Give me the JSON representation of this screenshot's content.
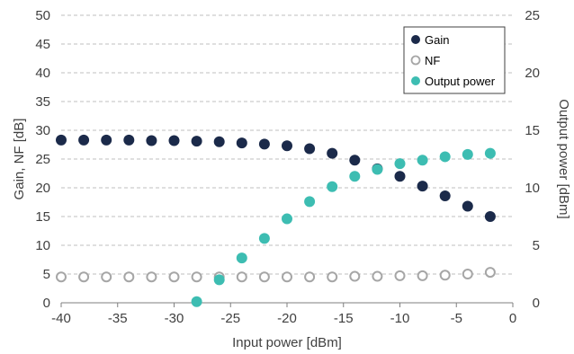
{
  "chart_data": {
    "type": "scatter",
    "xlabel": "Input power [dBm]",
    "ylabel": "Gain, NF [dB]",
    "y2label": "Output power [dBm]",
    "xlim": [
      -40,
      0
    ],
    "ylim": [
      0,
      50
    ],
    "y2lim": [
      0,
      25
    ],
    "x_ticks": [
      "-40",
      "-35",
      "-30",
      "-25",
      "-20",
      "-15",
      "-10",
      "-5",
      "0"
    ],
    "y_ticks": [
      "0",
      "5",
      "10",
      "15",
      "20",
      "25",
      "30",
      "35",
      "40",
      "45",
      "50"
    ],
    "y2_ticks": [
      "0",
      "5",
      "10",
      "15",
      "20",
      "25"
    ],
    "grid": "horizontal dashed",
    "legend_position": "top-right",
    "series": [
      {
        "name": "Gain",
        "axis": "left",
        "color": "#1b2a4a",
        "fill": "solid",
        "x": [
          -40,
          -38,
          -36,
          -34,
          -32,
          -30,
          -28,
          -26,
          -24,
          -22,
          -20,
          -18,
          -16,
          -14,
          -12,
          -10,
          -8,
          -6,
          -4,
          -2
        ],
        "values": [
          28.3,
          28.3,
          28.3,
          28.3,
          28.2,
          28.2,
          28.1,
          28.0,
          27.8,
          27.6,
          27.3,
          26.8,
          26.0,
          24.8,
          23.3,
          22.0,
          20.3,
          18.6,
          16.8,
          15.0
        ]
      },
      {
        "name": "NF",
        "axis": "left",
        "color": "#a6a6a6",
        "fill": "hollow",
        "x": [
          -40,
          -38,
          -36,
          -34,
          -32,
          -30,
          -28,
          -26,
          -24,
          -22,
          -20,
          -18,
          -16,
          -14,
          -12,
          -10,
          -8,
          -6,
          -4,
          -2
        ],
        "values": [
          4.5,
          4.5,
          4.5,
          4.5,
          4.5,
          4.5,
          4.5,
          4.5,
          4.5,
          4.5,
          4.5,
          4.5,
          4.5,
          4.6,
          4.6,
          4.7,
          4.7,
          4.8,
          5.0,
          5.3
        ]
      },
      {
        "name": "Output power",
        "axis": "right",
        "color": "#3dbdb2",
        "fill": "solid",
        "x": [
          -28,
          -26,
          -24,
          -22,
          -20,
          -18,
          -16,
          -14,
          -12,
          -10,
          -8,
          -6,
          -4,
          -2
        ],
        "values": [
          0.1,
          2.0,
          3.9,
          5.6,
          7.3,
          8.8,
          10.1,
          11.0,
          11.6,
          12.1,
          12.4,
          12.7,
          12.9,
          13.0
        ]
      }
    ]
  }
}
